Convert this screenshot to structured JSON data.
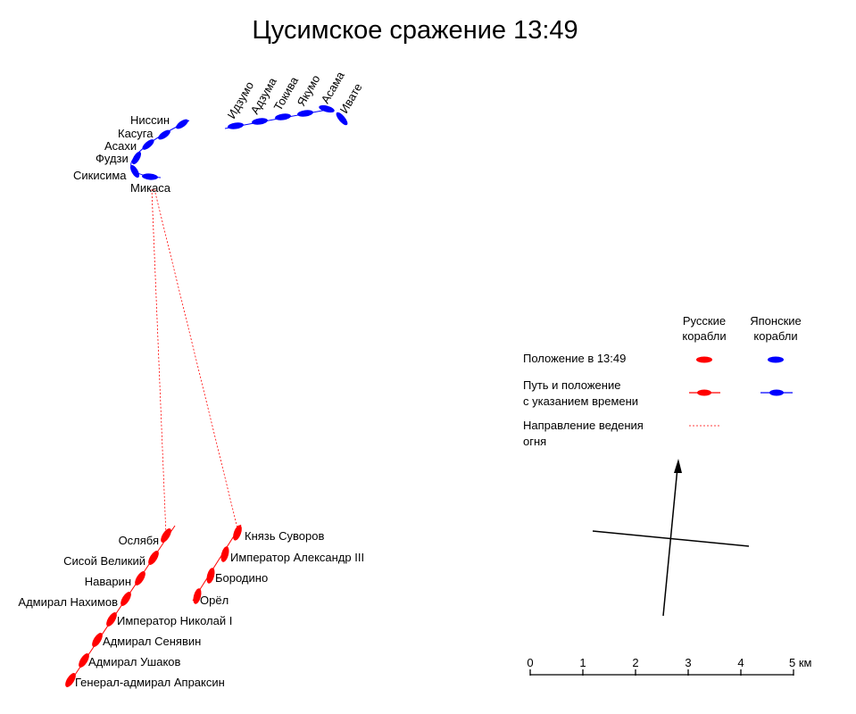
{
  "title": "Цусимское сражение 13:49",
  "colors": {
    "russian": "#ff0000",
    "japanese": "#0000ff",
    "fire": "#ff0000"
  },
  "japanese_ships": [
    "Ниссин",
    "Касуга",
    "Асахи",
    "Фудзи",
    "Сикисима",
    "Микаса",
    "Идзумо",
    "Адзума",
    "Токива",
    "Якумо",
    "Асама",
    "Ивате"
  ],
  "russian_ships": [
    "Ослябя",
    "Сисой Великий",
    "Наварин",
    "Адмирал Нахимов",
    "Император Николай I",
    "Адмирал Сенявин",
    "Адмирал Ушаков",
    "Генерал-адмирал Апраксин",
    "Князь Суворов",
    "Император Александр III",
    "Бородино",
    "Орёл"
  ],
  "legend": {
    "col_russian": [
      "Русские",
      "корабли"
    ],
    "col_japanese": [
      "Японские",
      "корабли"
    ],
    "position": "Положение в 13:49",
    "path": [
      "Путь и положение",
      "с указанием времени"
    ],
    "fire": [
      "Направление ведения",
      "огня"
    ]
  },
  "scale": {
    "ticks": [
      "0",
      "1",
      "2",
      "3",
      "4",
      "5 км"
    ]
  }
}
